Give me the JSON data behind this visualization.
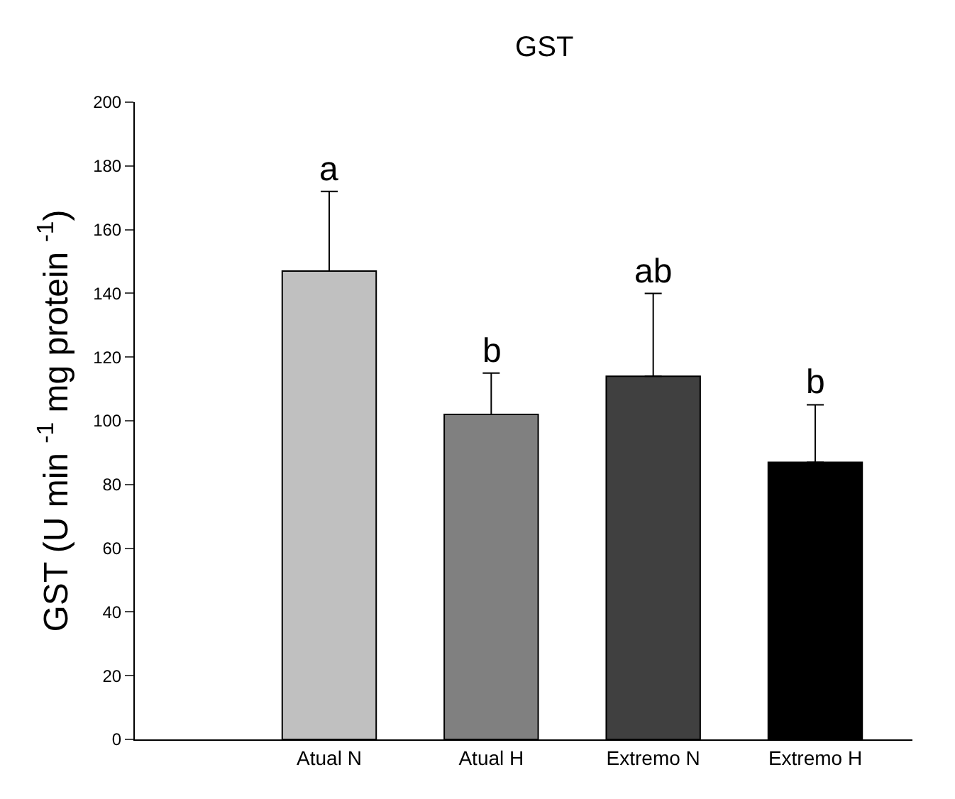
{
  "chart_data": {
    "type": "bar",
    "title": "GST",
    "ylabel": "GST (U min $^{-1}$ mg protein $^{-1}$)",
    "categories": [
      "Atual N",
      "Atual H",
      "Extremo N",
      "Extremo H"
    ],
    "values": [
      147,
      102,
      114,
      87
    ],
    "colors": [
      "#c0c0c0",
      "#808080",
      "#404040",
      "#000000"
    ],
    "errors": [
      [
        147,
        172
      ],
      [
        102,
        115
      ],
      [
        114,
        140
      ],
      [
        87,
        105
      ]
    ],
    "ylim": [
      0,
      200
    ],
    "yticks": [
      0,
      20,
      40,
      60,
      80,
      100,
      120,
      140,
      160,
      180,
      200
    ],
    "grid": false,
    "annotations": [
      {
        "text": "a",
        "x": "Atual N",
        "y": 172
      },
      {
        "text": "b",
        "x": "Atual H",
        "y": 115
      },
      {
        "text": "ab",
        "x": "Extremo N",
        "y": 140
      },
      {
        "text": "b",
        "x": "Extremo H",
        "y": 105
      }
    ]
  }
}
